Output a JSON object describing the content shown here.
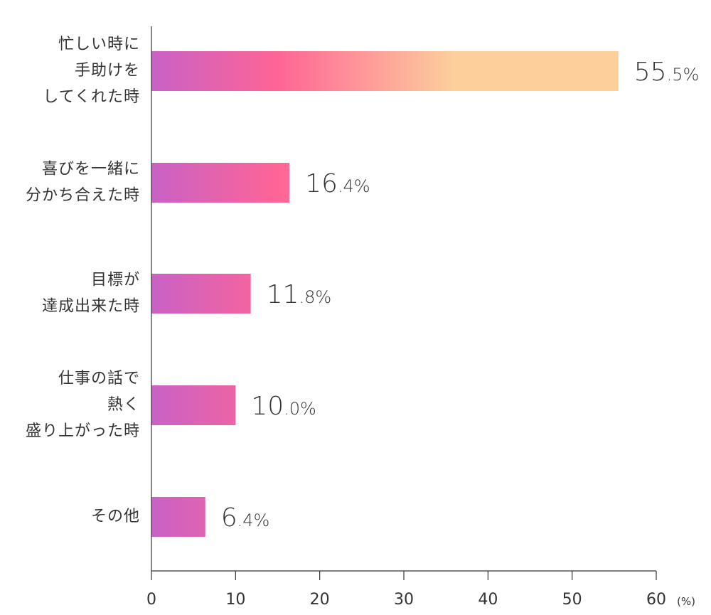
{
  "chart_data": {
    "type": "bar",
    "orientation": "horizontal",
    "categories": [
      [
        "忙しい時に",
        "手助けを",
        "してくれた時"
      ],
      [
        "喜びを一緒に",
        "分かち合えた時"
      ],
      [
        "目標が",
        "達成出来た時"
      ],
      [
        "仕事の話で",
        "熱く",
        "盛り上がった時"
      ],
      [
        "その他"
      ]
    ],
    "values": [
      55.5,
      16.4,
      11.8,
      10.0,
      6.4
    ],
    "value_labels": [
      {
        "int": "55",
        "dec": ".5",
        "unit": "%"
      },
      {
        "int": "16",
        "dec": ".4",
        "unit": "%"
      },
      {
        "int": "11",
        "dec": ".8",
        "unit": "%"
      },
      {
        "int": "10",
        "dec": ".0",
        "unit": "%"
      },
      {
        "int": "6",
        "dec": ".4",
        "unit": "%"
      }
    ],
    "xlim": [
      0,
      60
    ],
    "xticks": [
      "0",
      "10",
      "20",
      "30",
      "40",
      "50",
      "60"
    ],
    "x_unit": "(%)",
    "title": "",
    "xlabel": "",
    "ylabel": "",
    "grid": false,
    "colors": {
      "gradient_start": "#c862c6",
      "gradient_mid": "#ff6496",
      "gradient_end": "#fccf9b",
      "text": "#333333",
      "axis": "#333333"
    }
  }
}
